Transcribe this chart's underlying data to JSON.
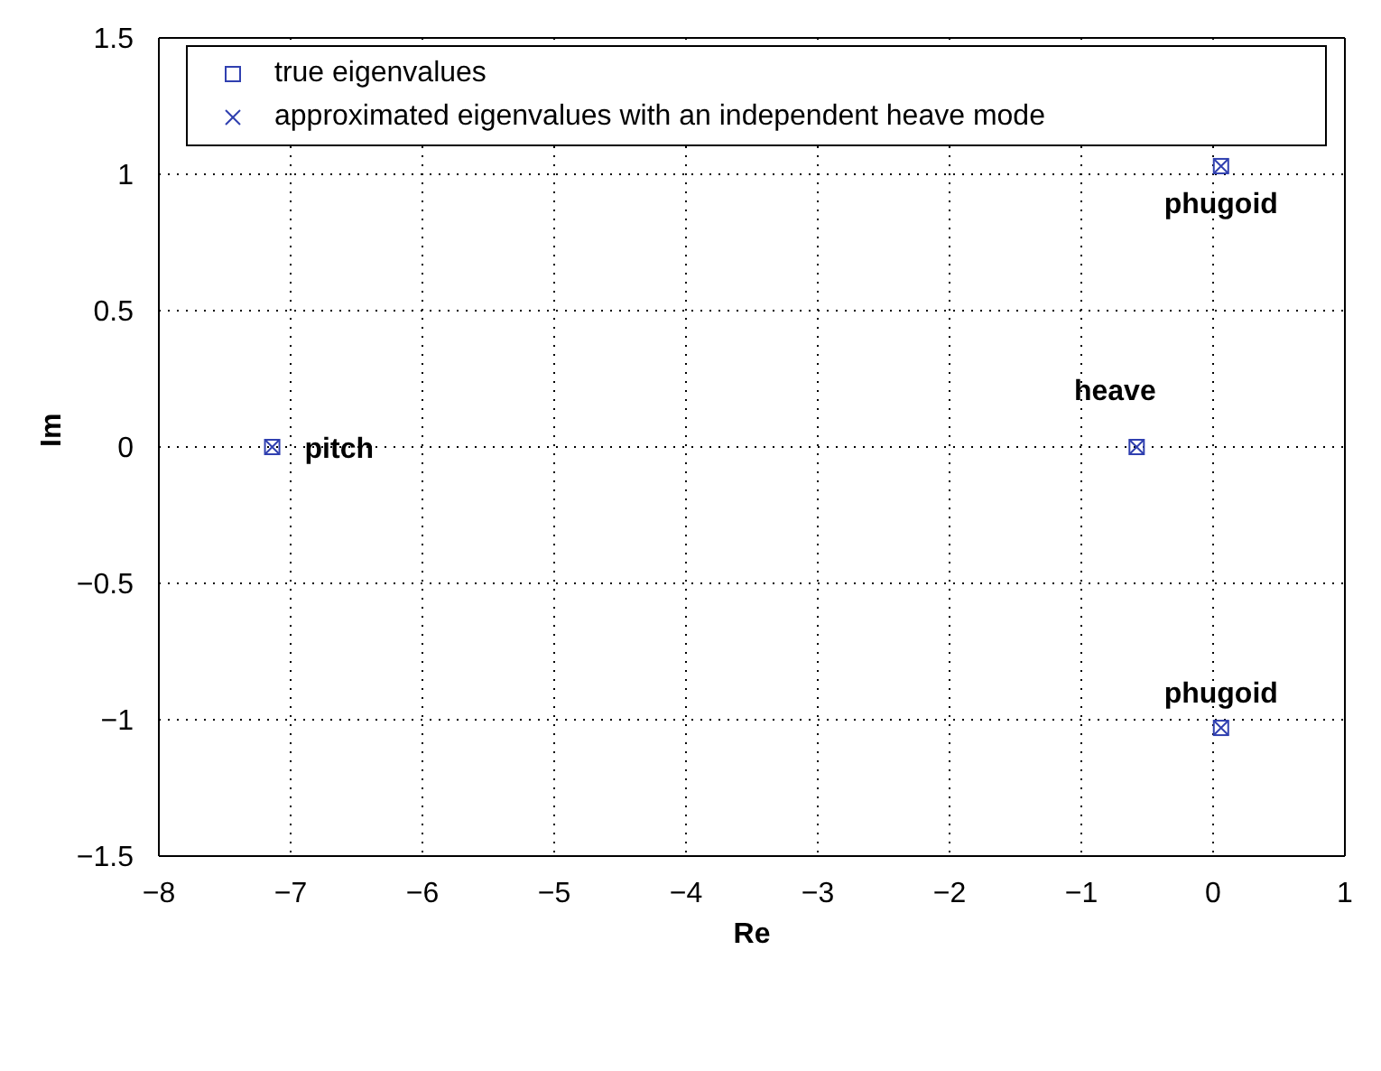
{
  "chart_data": {
    "type": "scatter",
    "xlabel": "Re",
    "ylabel": "Im",
    "xlim": [
      -8,
      1
    ],
    "xticks": [
      -8,
      -7,
      -6,
      -5,
      -4,
      -3,
      -2,
      -1,
      0,
      1
    ],
    "ylim": [
      -1.5,
      1.5
    ],
    "yticks": [
      -1.5,
      -1,
      -0.5,
      0,
      0.5,
      1,
      1.5
    ],
    "grid": true,
    "legend": "top",
    "x": [
      -7.14,
      -0.58,
      0.06,
      0.06
    ],
    "series": [
      {
        "name": "true eigenvalues",
        "color": "#3040b0",
        "values": [
          0,
          0,
          1.03,
          -1.03
        ],
        "marker": "square"
      },
      {
        "name": "approximated eigenvalues with an independent heave mode",
        "color": "#3040b0",
        "values": [
          0,
          0,
          1.03,
          -1.03
        ],
        "marker": "cross"
      }
    ],
    "annotations": [
      {
        "text": "pitch",
        "x": -7.14,
        "y": 0
      },
      {
        "text": "heave",
        "x": -0.58,
        "y": 0
      },
      {
        "text": "phugoid",
        "x": 0.06,
        "y": 1.03
      },
      {
        "text": "phugoid",
        "x": 0.06,
        "y": -1.03
      }
    ]
  }
}
